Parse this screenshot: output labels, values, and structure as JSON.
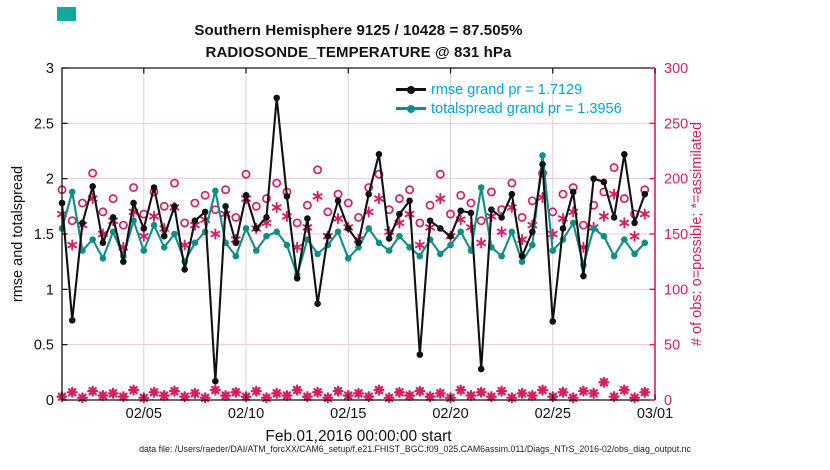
{
  "window": {
    "swatch_color": "#14a79e"
  },
  "title": {
    "line1": "Southern Hemisphere 9125 / 10428 = 87.505%",
    "line2": "RADIOSONDE_TEMPERATURE @ 831 hPa"
  },
  "legend": {
    "rmse_label": "rmse grand pr = 1.7129",
    "totalspread_label": "totalspread grand pr = 1.3956",
    "text_color": "#00a3e0"
  },
  "axes": {
    "left_label": "rmse and totalspread",
    "right_label": "# of obs: o=possible; *=assimilated",
    "x_label": "Feb.01,2016 00:00:00 start",
    "left_tick_labels": [
      "0",
      "0.5",
      "1",
      "1.5",
      "2",
      "2.5",
      "3"
    ],
    "right_tick_labels": [
      "0",
      "50",
      "100",
      "150",
      "200",
      "250",
      "300"
    ],
    "x_tick_labels": [
      "02/05",
      "02/10",
      "02/15",
      "02/20",
      "02/25",
      "03/01"
    ]
  },
  "footer": {
    "text": "data file: /Users/raeder/DAI/ATM_forcXX/CAM6_setup/f.e21.FHIST_BGC.f09_025.CAM6assim.011/Diags_NTrS_2016-02/obs_diag_output.nc"
  },
  "colors": {
    "rmse": "#111111",
    "totalspread": "#0e8e86",
    "obs_magenta": "#d61f62",
    "grid_horizontal": "#f3c7da",
    "grid_vertical": "#dcd0d7",
    "legend_text": "#00a3e0"
  },
  "chart_data": {
    "type": "line",
    "title": "Southern Hemisphere 9125 / 10428 = 87.505%",
    "subtitle": "RADIOSONDE_TEMPERATURE @ 831 hPa",
    "xlabel": "Feb.01,2016 00:00:00 start",
    "ylabel_left": "rmse and totalspread",
    "ylabel_right": "# of obs: o=possible; *=assimilated",
    "ylim_left": [
      0,
      3
    ],
    "ylim_right": [
      0,
      300
    ],
    "x_range_days": [
      0,
      29
    ],
    "x_tick_days": [
      4,
      9,
      14,
      19,
      24,
      29
    ],
    "x_tick_labels": [
      "02/05",
      "02/10",
      "02/15",
      "02/20",
      "02/25",
      "03/01"
    ],
    "left_ticks": [
      0,
      0.5,
      1,
      1.5,
      2,
      2.5,
      3
    ],
    "right_ticks": [
      0,
      50,
      100,
      150,
      200,
      250,
      300
    ],
    "grid": true,
    "legend_position": "top-right-inside",
    "x_days_since_feb1": [
      0,
      0.5,
      1,
      1.5,
      2,
      2.5,
      3,
      3.5,
      4,
      4.5,
      5,
      5.5,
      6,
      6.5,
      7,
      7.5,
      8,
      8.5,
      9,
      9.5,
      10,
      10.5,
      11,
      11.5,
      12,
      12.5,
      13,
      13.5,
      14,
      14.5,
      15,
      15.5,
      16,
      16.5,
      17,
      17.5,
      18,
      18.5,
      19,
      19.5,
      20,
      20.5,
      21,
      21.5,
      22,
      22.5,
      23,
      23.5,
      24,
      24.5,
      25,
      25.5,
      26,
      26.5,
      27,
      27.5,
      28,
      28.5
    ],
    "series": [
      {
        "name": "rmse",
        "grand_value": 1.7129,
        "axis": "left",
        "color": "#111111",
        "marker": "filled-dot-line",
        "values": [
          1.78,
          0.72,
          1.6,
          1.93,
          1.42,
          1.65,
          1.25,
          1.78,
          1.55,
          1.92,
          1.48,
          1.75,
          1.18,
          1.62,
          1.7,
          0.17,
          1.75,
          1.42,
          1.85,
          1.55,
          1.65,
          2.73,
          1.84,
          1.1,
          1.64,
          0.87,
          1.48,
          1.8,
          1.55,
          1.42,
          1.86,
          2.22,
          1.46,
          1.68,
          1.8,
          0.41,
          1.62,
          1.55,
          1.48,
          1.71,
          1.69,
          0.28,
          1.72,
          1.65,
          1.86,
          1.3,
          1.52,
          2.13,
          0.71,
          1.55,
          1.88,
          1.12,
          2.0,
          1.97,
          1.65,
          2.22,
          1.6,
          1.86
        ]
      },
      {
        "name": "totalspread",
        "grand_value": 1.3956,
        "axis": "left",
        "color": "#0e8e86",
        "marker": "filled-dot-line",
        "values": [
          1.55,
          1.88,
          1.35,
          1.45,
          1.28,
          1.52,
          1.3,
          1.62,
          1.35,
          1.58,
          1.38,
          1.5,
          1.25,
          1.42,
          1.52,
          1.89,
          1.42,
          1.3,
          1.55,
          1.35,
          1.48,
          1.52,
          1.4,
          1.13,
          1.45,
          1.32,
          1.4,
          1.52,
          1.28,
          1.38,
          1.55,
          1.42,
          1.35,
          1.48,
          1.38,
          1.3,
          1.45,
          1.32,
          1.4,
          1.52,
          1.35,
          1.92,
          1.38,
          1.3,
          1.52,
          1.25,
          1.4,
          2.21,
          1.35,
          1.45,
          1.6,
          1.22,
          1.55,
          1.48,
          1.3,
          1.45,
          1.32,
          1.42
        ]
      },
      {
        "name": "possible_obs",
        "axis": "right",
        "color": "#d61f62",
        "marker": "open-circle",
        "values": [
          190,
          162,
          178,
          205,
          170,
          182,
          158,
          192,
          168,
          188,
          175,
          196,
          160,
          178,
          185,
          172,
          190,
          165,
          204,
          175,
          182,
          196,
          188,
          160,
          176,
          208,
          170,
          186,
          178,
          165,
          192,
          204,
          172,
          182,
          190,
          160,
          176,
          204,
          168,
          185,
          178,
          162,
          188,
          172,
          196,
          165,
          180,
          205,
          170,
          186,
          192,
          158,
          176,
          188,
          210,
          182,
          168,
          190
        ]
      },
      {
        "name": "assimilated_obs",
        "axis": "right",
        "color": "#d61f62",
        "marker": "asterisk",
        "values": [
          168,
          140,
          158,
          182,
          150,
          162,
          138,
          170,
          148,
          166,
          155,
          174,
          140,
          158,
          163,
          150,
          168,
          145,
          182,
          155,
          160,
          174,
          166,
          138,
          156,
          184,
          148,
          164,
          156,
          145,
          170,
          182,
          152,
          160,
          168,
          140,
          156,
          182,
          148,
          163,
          156,
          142,
          166,
          152,
          174,
          145,
          158,
          183,
          150,
          164,
          170,
          138,
          156,
          166,
          186,
          160,
          148,
          168
        ]
      },
      {
        "name": "near_zero_obs_row",
        "axis": "right",
        "color": "#d61f62",
        "marker": "bold-asterisk",
        "values": [
          3,
          7,
          2,
          8,
          4,
          6,
          3,
          9,
          2,
          7,
          4,
          8,
          3,
          6,
          2,
          9,
          4,
          7,
          3,
          8,
          2,
          6,
          4,
          9,
          3,
          7,
          2,
          8,
          4,
          6,
          3,
          9,
          2,
          7,
          4,
          8,
          3,
          6,
          2,
          9,
          4,
          7,
          3,
          8,
          2,
          6,
          4,
          9,
          3,
          7,
          2,
          8,
          6,
          16,
          3,
          9,
          2,
          7
        ]
      }
    ]
  }
}
